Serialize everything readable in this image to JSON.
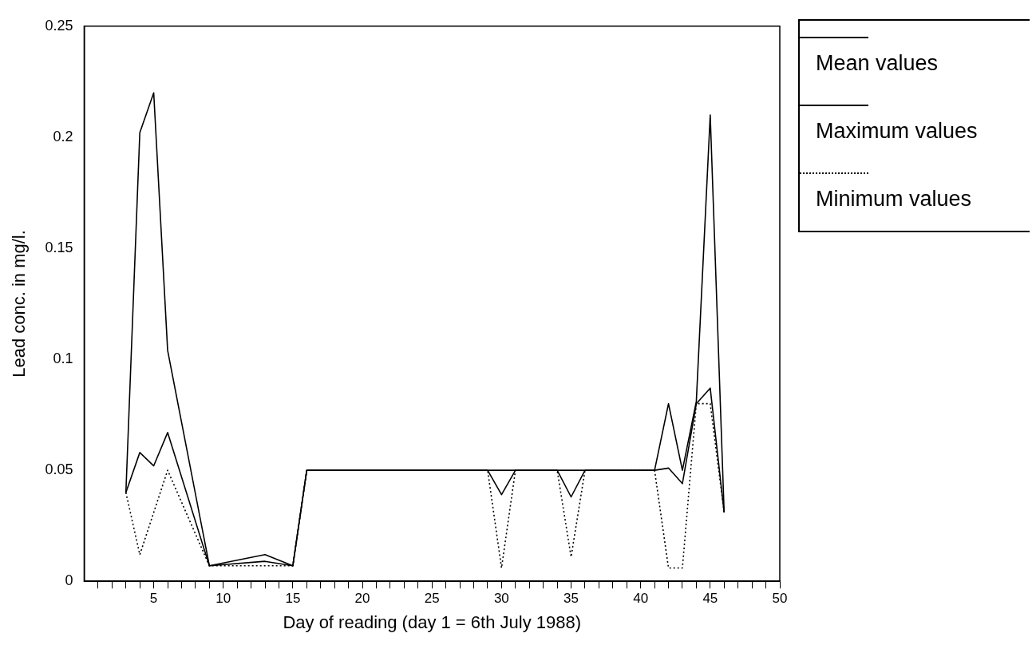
{
  "chart_data": {
    "type": "line",
    "xlabel": "Day of reading (day 1 = 6th July 1988)",
    "ylabel": "Lead conc. in mg/l.",
    "xlim": [
      0,
      50
    ],
    "ylim": [
      0,
      0.25
    ],
    "xticks": [
      {
        "value": 1,
        "label": null
      },
      {
        "value": 2,
        "label": null
      },
      {
        "value": 3,
        "label": null
      },
      {
        "value": 4,
        "label": null
      },
      5,
      {
        "value": 6,
        "label": null
      },
      {
        "value": 7,
        "label": null
      },
      {
        "value": 8,
        "label": null
      },
      {
        "value": 9,
        "label": null
      },
      10,
      {
        "value": 11,
        "label": null
      },
      {
        "value": 12,
        "label": null
      },
      {
        "value": 13,
        "label": null
      },
      {
        "value": 14,
        "label": null
      },
      15,
      {
        "value": 16,
        "label": null
      },
      {
        "value": 17,
        "label": null
      },
      {
        "value": 18,
        "label": null
      },
      {
        "value": 19,
        "label": null
      },
      20,
      {
        "value": 21,
        "label": null
      },
      {
        "value": 22,
        "label": null
      },
      {
        "value": 23,
        "label": null
      },
      {
        "value": 24,
        "label": null
      },
      25,
      {
        "value": 26,
        "label": null
      },
      {
        "value": 27,
        "label": null
      },
      {
        "value": 28,
        "label": null
      },
      {
        "value": 29,
        "label": null
      },
      30,
      {
        "value": 31,
        "label": null
      },
      {
        "value": 32,
        "label": null
      },
      {
        "value": 33,
        "label": null
      },
      {
        "value": 34,
        "label": null
      },
      35,
      {
        "value": 36,
        "label": null
      },
      {
        "value": 37,
        "label": null
      },
      {
        "value": 38,
        "label": null
      },
      {
        "value": 39,
        "label": null
      },
      40,
      {
        "value": 41,
        "label": null
      },
      {
        "value": 42,
        "label": null
      },
      {
        "value": 43,
        "label": null
      },
      {
        "value": 44,
        "label": null
      },
      45,
      {
        "value": 46,
        "label": null
      },
      {
        "value": 47,
        "label": null
      },
      {
        "value": 48,
        "label": null
      },
      {
        "value": 49,
        "label": null
      },
      50
    ],
    "yticks": [
      0,
      0.05,
      0.1,
      0.15,
      0.2,
      0.25
    ],
    "grid": false,
    "legend": "right",
    "marker": "none",
    "series": [
      {
        "name": "Mean values",
        "color": "#000000",
        "line_style": "solid",
        "x": [
          3,
          4,
          5,
          6,
          9,
          13,
          15,
          16,
          29,
          30,
          31,
          34,
          35,
          36,
          41,
          42,
          43,
          44,
          45,
          46
        ],
        "values": [
          0.04,
          0.058,
          0.052,
          0.067,
          0.007,
          0.009,
          0.007,
          0.05,
          0.05,
          0.039,
          0.05,
          0.05,
          0.038,
          0.05,
          0.05,
          0.051,
          0.044,
          0.08,
          0.087,
          0.031
        ]
      },
      {
        "name": "Maximum values",
        "color": "#000000",
        "line_style": "solid",
        "x": [
          3,
          4,
          5,
          6,
          9,
          13,
          15,
          16,
          41,
          42,
          43,
          44,
          45,
          46
        ],
        "values": [
          0.04,
          0.202,
          0.22,
          0.104,
          0.007,
          0.012,
          0.007,
          0.05,
          0.05,
          0.08,
          0.05,
          0.081,
          0.21,
          0.031
        ]
      },
      {
        "name": "Minimum values",
        "color": "#000000",
        "line_style": "dotted",
        "x": [
          3,
          4,
          6,
          9,
          13,
          15,
          16,
          29,
          30,
          31,
          34,
          35,
          36,
          41,
          42,
          43,
          44,
          45,
          46
        ],
        "values": [
          0.04,
          0.012,
          0.05,
          0.007,
          0.007,
          0.007,
          0.05,
          0.05,
          0.006,
          0.05,
          0.05,
          0.011,
          0.05,
          0.05,
          0.006,
          0.006,
          0.08,
          0.08,
          0.031
        ]
      }
    ]
  }
}
